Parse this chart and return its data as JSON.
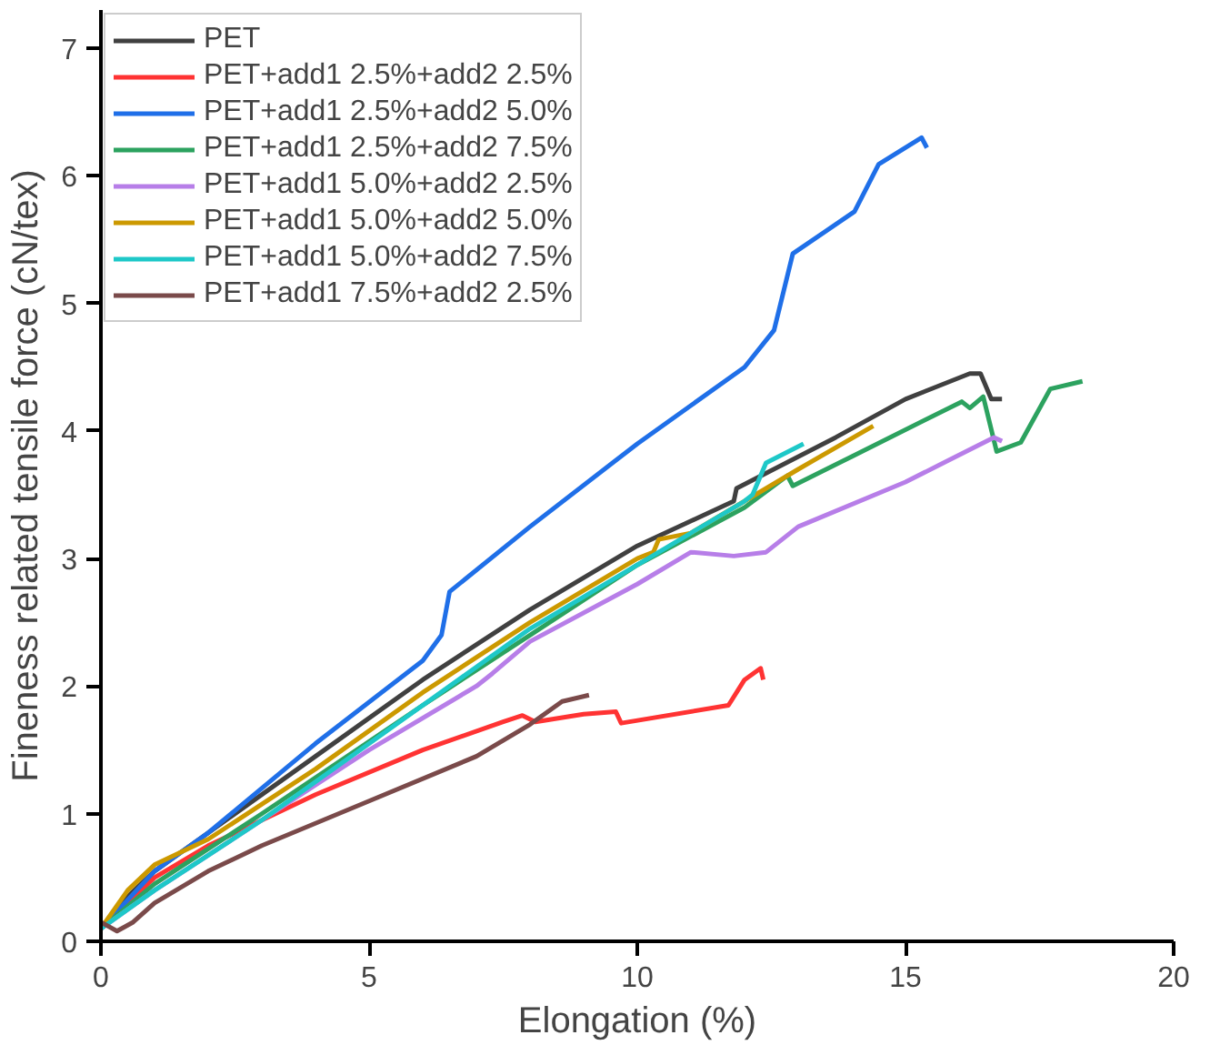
{
  "chart_data": {
    "type": "line",
    "xlabel": "Elongation (%)",
    "ylabel": "Fineness related tensile force (cN/tex)",
    "xlim": [
      0,
      20
    ],
    "ylim": [
      0,
      7.3
    ],
    "xticks": [
      0,
      5,
      10,
      15,
      20
    ],
    "yticks": [
      0,
      1,
      2,
      3,
      4,
      5,
      6,
      7
    ],
    "grid": false,
    "legend": "top left",
    "line_style": "solid",
    "series": [
      {
        "name": "PET",
        "color": "#404040",
        "x": [
          0,
          0.5,
          1,
          2,
          4,
          6,
          8,
          10,
          11.8,
          11.85,
          13.7,
          15,
          16.2,
          16.4,
          16.6,
          16.8
        ],
        "values": [
          0.1,
          0.35,
          0.55,
          0.85,
          1.45,
          2.05,
          2.6,
          3.1,
          3.45,
          3.55,
          3.95,
          4.25,
          4.45,
          4.45,
          4.25,
          4.25
        ]
      },
      {
        "name": "PET+add1 2.5%+add2 2.5%",
        "color": "#ff3333",
        "x": [
          0,
          1,
          2,
          4,
          6,
          7.5,
          7.86,
          8.1,
          9,
          9.6,
          9.7,
          11.7,
          12,
          12.3,
          12.35
        ],
        "values": [
          0.1,
          0.5,
          0.75,
          1.15,
          1.5,
          1.72,
          1.77,
          1.72,
          1.78,
          1.8,
          1.71,
          1.85,
          2.05,
          2.14,
          2.05
        ]
      },
      {
        "name": "PET+add1 2.5%+add2 5.0%",
        "color": "#1f6fe8",
        "x": [
          0,
          1,
          2,
          4,
          6,
          6.35,
          6.5,
          8,
          10,
          12,
          12.55,
          12.9,
          14.05,
          14.5,
          15.3,
          15.4
        ],
        "values": [
          0.1,
          0.55,
          0.85,
          1.55,
          2.2,
          2.4,
          2.74,
          3.25,
          3.9,
          4.5,
          4.79,
          5.39,
          5.72,
          6.09,
          6.3,
          6.22
        ]
      },
      {
        "name": "PET+add1 2.5%+add2 7.5%",
        "color": "#2ca25f",
        "x": [
          0,
          1,
          3,
          6,
          8,
          10,
          12,
          12.8,
          12.9,
          14,
          16.05,
          16.2,
          16.45,
          16.7,
          17.15,
          17.7,
          18.3
        ],
        "values": [
          0.1,
          0.45,
          1.0,
          1.85,
          2.4,
          2.95,
          3.4,
          3.65,
          3.57,
          3.8,
          4.23,
          4.18,
          4.27,
          3.84,
          3.91,
          4.33,
          4.39
        ]
      },
      {
        "name": "PET+add1 5.0%+add2 2.5%",
        "color": "#b77ee8",
        "x": [
          0,
          1,
          3,
          5,
          7,
          7.3,
          8,
          10,
          11,
          11.8,
          12.4,
          13,
          15,
          16.65,
          16.8
        ],
        "values": [
          0.1,
          0.4,
          0.95,
          1.5,
          2.0,
          2.1,
          2.35,
          2.8,
          3.05,
          3.02,
          3.05,
          3.25,
          3.6,
          3.95,
          3.92
        ]
      },
      {
        "name": "PET+add1 5.0%+add2 5.0%",
        "color": "#cc9900",
        "x": [
          0,
          0.5,
          1,
          2,
          4,
          6,
          8,
          10,
          10.3,
          10.4,
          11,
          13,
          14.4
        ],
        "values": [
          0.1,
          0.4,
          0.6,
          0.8,
          1.35,
          1.95,
          2.5,
          3.0,
          3.05,
          3.15,
          3.2,
          3.7,
          4.04
        ]
      },
      {
        "name": "PET+add1 5.0%+add2 7.5%",
        "color": "#1ec8c8",
        "x": [
          0,
          1,
          3,
          6,
          8,
          10,
          11,
          12,
          12.15,
          12.4,
          13.1
        ],
        "values": [
          0.1,
          0.4,
          0.95,
          1.85,
          2.45,
          2.95,
          3.2,
          3.45,
          3.5,
          3.75,
          3.9
        ]
      },
      {
        "name": "PET+add1 7.5%+add2 2.5%",
        "color": "#7a4a4a",
        "x": [
          0,
          0.3,
          0.6,
          1,
          2,
          3,
          5,
          7,
          8,
          8.6,
          9.1
        ],
        "values": [
          0.15,
          0.08,
          0.15,
          0.3,
          0.55,
          0.75,
          1.1,
          1.45,
          1.7,
          1.88,
          1.93
        ]
      }
    ]
  }
}
